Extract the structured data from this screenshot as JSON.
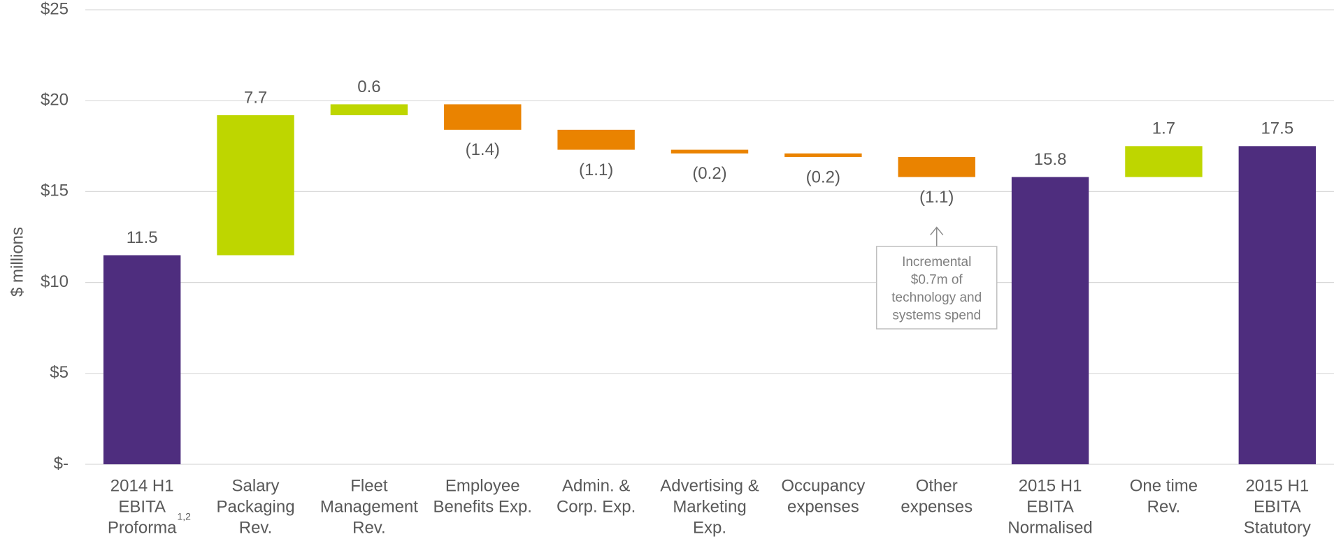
{
  "chart_data": {
    "type": "waterfall",
    "y_axis_label": "$ millions",
    "categories": [
      [
        "2014 H1",
        "EBITA",
        "Proforma"
      ],
      [
        "Salary",
        "Packaging",
        "Rev."
      ],
      [
        "Fleet",
        "Management",
        "Rev."
      ],
      [
        "Employee",
        "Benefits Exp."
      ],
      [
        "Admin. &",
        "Corp. Exp."
      ],
      [
        "Advertising &",
        "Marketing",
        "Exp."
      ],
      [
        "Occupancy",
        "expenses"
      ],
      [
        "Other",
        "expenses"
      ],
      [
        "2015 H1",
        "EBITA",
        "Normalised"
      ],
      [
        "One time",
        "Rev."
      ],
      [
        "2015 H1",
        "EBITA",
        "Statutory"
      ]
    ],
    "category_footnote": {
      "category": 0,
      "text": "1,2"
    },
    "values": [
      11.5,
      7.7,
      0.6,
      -1.4,
      -1.1,
      -0.2,
      -0.2,
      -1.1,
      15.8,
      1.7,
      17.5
    ],
    "value_labels": [
      "11.5",
      "7.7",
      "0.6",
      "(1.4)",
      "(1.1)",
      "(0.2)",
      "(0.2)",
      "(1.1)",
      "15.8",
      "1.7",
      "17.5"
    ],
    "kinds": [
      "total",
      "increase",
      "increase",
      "decrease",
      "decrease",
      "decrease",
      "decrease",
      "decrease",
      "total",
      "increase",
      "total"
    ],
    "colors": {
      "total": "#4e2d7e",
      "increase": "#bed600",
      "decrease": "#ea8300"
    },
    "ylim": [
      0,
      25
    ],
    "yticks": [
      {
        "value": 0,
        "label": "$-"
      },
      {
        "value": 5,
        "label": "$5"
      },
      {
        "value": 10,
        "label": "$10"
      },
      {
        "value": 15,
        "label": "$15"
      },
      {
        "value": 20,
        "label": "$20"
      },
      {
        "value": 25,
        "label": "$25"
      }
    ],
    "grid": true,
    "annotation": {
      "category": 7,
      "lines": [
        "Incremental",
        "$0.7m of",
        "technology and",
        "systems spend"
      ]
    }
  }
}
